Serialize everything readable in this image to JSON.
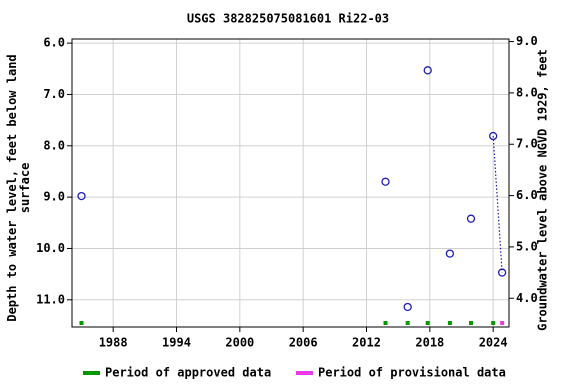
{
  "chart_data": {
    "type": "scatter",
    "title": "USGS 382825075081601 Ri22-03",
    "ylabel": [
      "Depth to water level, feet below land",
      "surface"
    ],
    "y2label": "Groundwater level above NGVD 1929, feet",
    "x": [
      1985.0,
      2013.8,
      2015.9,
      2017.8,
      2019.9,
      2021.9,
      2024.0,
      2024.85
    ],
    "series": [
      {
        "name": "Depth to water level",
        "color": "#1c1cb4",
        "values": [
          8.98,
          8.7,
          11.14,
          6.53,
          10.1,
          9.42,
          7.81,
          10.47
        ]
      }
    ],
    "status": [
      "approved",
      "approved",
      "approved",
      "approved",
      "approved",
      "approved",
      "approved",
      "provisional"
    ],
    "periods": [
      {
        "key": "approved",
        "name": "Period of approved data",
        "color": "#009a00"
      },
      {
        "key": "provisional",
        "name": "Period of provisional data",
        "color": "#e83be8"
      }
    ],
    "xlim": [
      1984.1,
      2025.5
    ],
    "xticks": [
      1988,
      1994,
      2000,
      2006,
      2012,
      2018,
      2024
    ],
    "ylim": [
      11.53,
      5.92
    ],
    "yticks": [
      {
        "value": 6,
        "label": "6.0"
      },
      {
        "value": 7,
        "label": "7.0"
      },
      {
        "value": 8,
        "label": "8.0"
      },
      {
        "value": 9,
        "label": "9.0"
      },
      {
        "value": 10,
        "label": "10.0"
      },
      {
        "value": 11,
        "label": "11.0"
      }
    ],
    "y2lim": [
      3.44,
      9.05
    ],
    "y2ticks": [
      {
        "value": 4,
        "label": "4.0"
      },
      {
        "value": 5,
        "label": "5.0"
      },
      {
        "value": 6,
        "label": "6.0"
      },
      {
        "value": 7,
        "label": "7.0"
      },
      {
        "value": 8,
        "label": "8.0"
      },
      {
        "value": 9,
        "label": "9.0"
      }
    ],
    "grid": true
  }
}
